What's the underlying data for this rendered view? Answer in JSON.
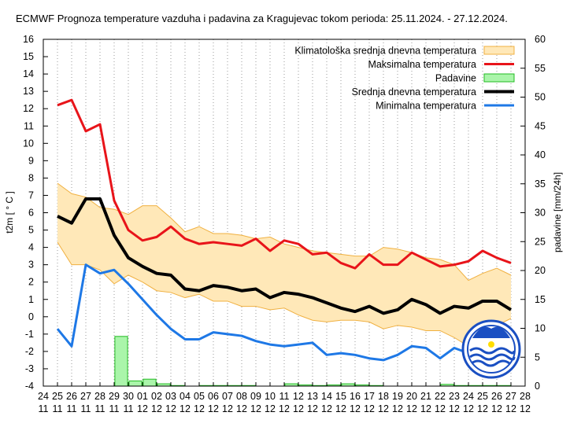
{
  "chart_data": {
    "type": "line",
    "title": "ECMWF Prognoza temperature vazduha i padavina za Kragujevac tokom perioda: 25.11.2024. - 27.12.2024.",
    "ylabel": "t2m [ ° C ]",
    "y2label": "padavine [mm/24h]",
    "ylim": [
      -4,
      16
    ],
    "y2lim": [
      0,
      60
    ],
    "yticks": [
      "16",
      "15",
      "14",
      "13",
      "12",
      "11",
      "10",
      "9",
      "8",
      "7",
      "6",
      "5",
      "4",
      "3",
      "2",
      "1",
      "0",
      "-1",
      "-2",
      "-3",
      "-4"
    ],
    "y2ticks": [
      "60",
      "55",
      "50",
      "45",
      "40",
      "35",
      "30",
      "25",
      "20",
      "15",
      "10",
      "5",
      "0"
    ],
    "x_days": [
      "24",
      "25",
      "26",
      "27",
      "28",
      "29",
      "30",
      "01",
      "02",
      "03",
      "04",
      "05",
      "06",
      "07",
      "08",
      "09",
      "10",
      "11",
      "12",
      "13",
      "14",
      "15",
      "16",
      "17",
      "18",
      "19",
      "20",
      "21",
      "22",
      "23",
      "24",
      "25",
      "26",
      "27",
      "28"
    ],
    "x_months": [
      "11",
      "11",
      "11",
      "11",
      "11",
      "11",
      "11",
      "12",
      "12",
      "12",
      "12",
      "12",
      "12",
      "12",
      "12",
      "12",
      "12",
      "12",
      "12",
      "12",
      "12",
      "12",
      "12",
      "12",
      "12",
      "12",
      "12",
      "12",
      "12",
      "12",
      "12",
      "12",
      "12",
      "12",
      "12"
    ],
    "legend_position": "top-right",
    "grid": "vertical dotted",
    "series": [
      {
        "name": "Klimatološka srednja dnevna temperatura",
        "kind": "band",
        "color": "#ffe8b8",
        "edge": "#f0b040",
        "upper": [
          7.7,
          7.1,
          6.9,
          6.3,
          6.2,
          5.9,
          6.4,
          6.4,
          5.7,
          4.9,
          5.2,
          4.8,
          4.8,
          4.7,
          4.5,
          4.6,
          4.2,
          4.0,
          3.8,
          3.7,
          3.6,
          3.5,
          3.5,
          4.0,
          3.9,
          3.7,
          3.4,
          3.3,
          3.0,
          2.1,
          2.5,
          2.8,
          2.4
        ],
        "lower": [
          4.3,
          3.0,
          3.0,
          2.7,
          1.9,
          2.4,
          2.0,
          1.5,
          1.4,
          1.1,
          1.3,
          0.9,
          0.9,
          0.6,
          0.6,
          0.4,
          0.5,
          0.1,
          -0.2,
          -0.3,
          -0.2,
          -0.2,
          -0.3,
          -0.7,
          -0.5,
          -0.6,
          -0.8,
          -0.8,
          -1.2,
          -1.7,
          -0.9,
          -0.5,
          -0.1
        ]
      },
      {
        "name": "Maksimalna temperatura",
        "kind": "line",
        "color": "#e8141a",
        "values": [
          12.2,
          12.5,
          10.7,
          11.1,
          6.7,
          5.0,
          4.4,
          4.6,
          5.2,
          4.5,
          4.2,
          4.3,
          4.2,
          4.1,
          4.5,
          3.8,
          4.4,
          4.2,
          3.6,
          3.7,
          3.1,
          2.8,
          3.6,
          3.0,
          3.0,
          3.7,
          3.3,
          2.9,
          3.0,
          3.2,
          3.8,
          3.4,
          3.1
        ]
      },
      {
        "name": "Padavine",
        "kind": "bar",
        "color": "#aaf5aa",
        "edge": "#22bb22",
        "values": [
          0,
          0,
          0,
          0,
          8.6,
          0.9,
          1.2,
          0.4,
          0.1,
          0,
          0.1,
          0.1,
          0.1,
          0.1,
          0,
          0,
          0.4,
          0.2,
          0.1,
          0.2,
          0.4,
          0.2,
          0.1,
          0,
          0,
          0,
          0,
          0.3,
          0.1,
          0.1,
          0.1,
          0.1,
          0
        ]
      },
      {
        "name": "Srednja dnevna temperatura",
        "kind": "line",
        "color": "#000000",
        "values": [
          5.8,
          5.4,
          6.8,
          6.8,
          4.7,
          3.4,
          2.9,
          2.5,
          2.4,
          1.6,
          1.5,
          1.8,
          1.7,
          1.5,
          1.6,
          1.1,
          1.4,
          1.3,
          1.1,
          0.8,
          0.5,
          0.3,
          0.6,
          0.2,
          0.4,
          1.0,
          0.7,
          0.2,
          0.6,
          0.5,
          0.9,
          0.9,
          0.4
        ]
      },
      {
        "name": "Minimalna temperatura",
        "kind": "line",
        "color": "#1e78e6",
        "values": [
          -0.7,
          -1.7,
          3.0,
          2.5,
          2.7,
          1.9,
          1.0,
          0.1,
          -0.7,
          -1.3,
          -1.3,
          -0.9,
          -1.0,
          -1.1,
          -1.4,
          -1.6,
          -1.7,
          -1.6,
          -1.5,
          -2.2,
          -2.1,
          -2.2,
          -2.4,
          -2.5,
          -2.2,
          -1.7,
          -1.8,
          -2.4,
          -1.8,
          -2.1,
          -2.0,
          -2.3,
          -2.0
        ]
      }
    ]
  }
}
